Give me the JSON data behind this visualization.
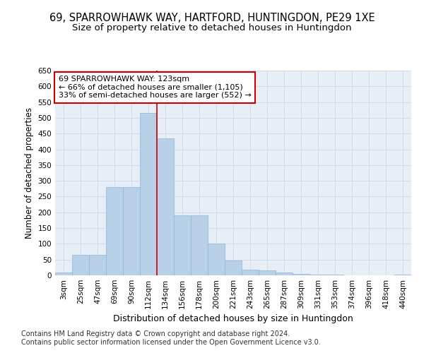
{
  "title": "69, SPARROWHAWK WAY, HARTFORD, HUNTINGDON, PE29 1XE",
  "subtitle": "Size of property relative to detached houses in Huntingdon",
  "xlabel": "Distribution of detached houses by size in Huntingdon",
  "ylabel": "Number of detached properties",
  "categories": [
    "3sqm",
    "25sqm",
    "47sqm",
    "69sqm",
    "90sqm",
    "112sqm",
    "134sqm",
    "156sqm",
    "178sqm",
    "200sqm",
    "221sqm",
    "243sqm",
    "265sqm",
    "287sqm",
    "309sqm",
    "331sqm",
    "353sqm",
    "374sqm",
    "396sqm",
    "418sqm",
    "440sqm"
  ],
  "values": [
    8,
    65,
    65,
    280,
    280,
    515,
    435,
    190,
    190,
    100,
    48,
    18,
    15,
    8,
    5,
    3,
    2,
    1,
    1,
    1,
    3
  ],
  "bar_color": "#b8d0e8",
  "bar_edge_color": "#8ab4d4",
  "property_line_x": 5.5,
  "property_line_color": "#cc0000",
  "annotation_text": "69 SPARROWHAWK WAY: 123sqm\n← 66% of detached houses are smaller (1,105)\n33% of semi-detached houses are larger (552) →",
  "annotation_box_color": "#ffffff",
  "annotation_box_edge_color": "#cc0000",
  "ylim": [
    0,
    650
  ],
  "yticks": [
    0,
    50,
    100,
    150,
    200,
    250,
    300,
    350,
    400,
    450,
    500,
    550,
    600,
    650
  ],
  "bg_color": "#e8eef6",
  "footnote1": "Contains HM Land Registry data © Crown copyright and database right 2024.",
  "footnote2": "Contains public sector information licensed under the Open Government Licence v3.0.",
  "title_fontsize": 10.5,
  "subtitle_fontsize": 9.5,
  "xlabel_fontsize": 9,
  "ylabel_fontsize": 8.5,
  "tick_fontsize": 7.5,
  "annotation_fontsize": 8,
  "footnote_fontsize": 7
}
